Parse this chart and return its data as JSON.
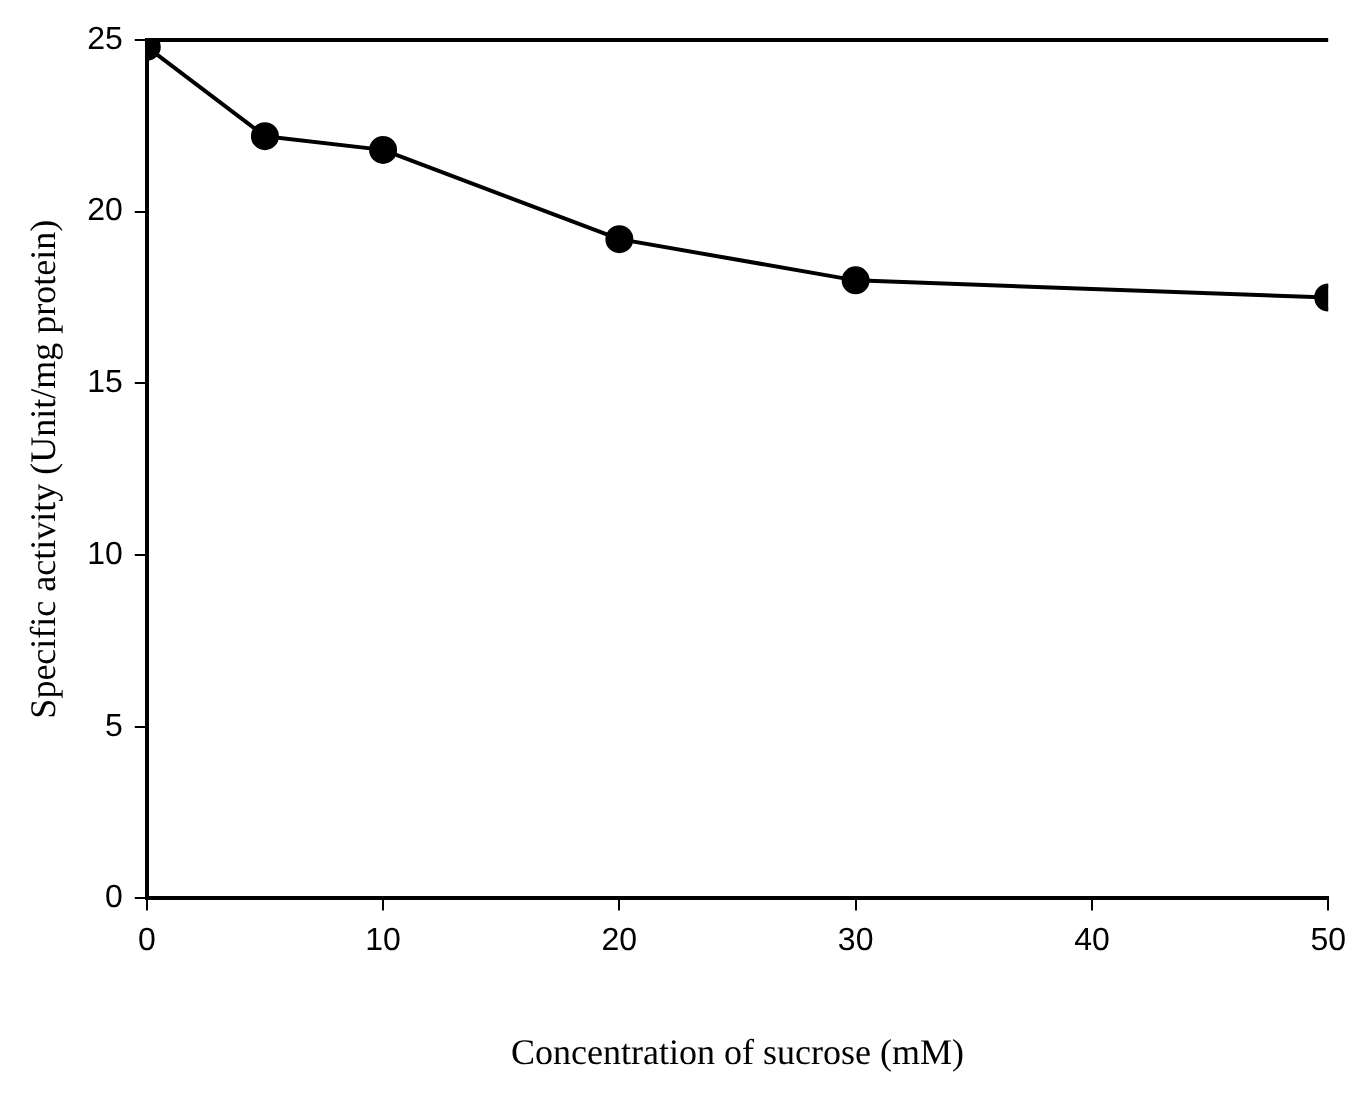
{
  "chart_data": {
    "type": "line",
    "xlabel": "Concentration of sucrose (mM)",
    "ylabel": "Specific activity (Unit/mg protein)",
    "x": [
      0,
      5,
      10,
      20,
      30,
      50
    ],
    "series": [
      {
        "color": "#000000",
        "values": [
          24.8,
          22.2,
          21.8,
          19.2,
          18.0,
          17.5
        ]
      }
    ],
    "xlim": [
      0,
      50
    ],
    "xticks": [
      0,
      10,
      20,
      30,
      40,
      50
    ],
    "ylim": [
      0,
      25
    ],
    "yticks": [
      0,
      5,
      10,
      15,
      20,
      25
    ],
    "grid": false,
    "legend": false,
    "marker": "circle",
    "line_style": "solid"
  }
}
